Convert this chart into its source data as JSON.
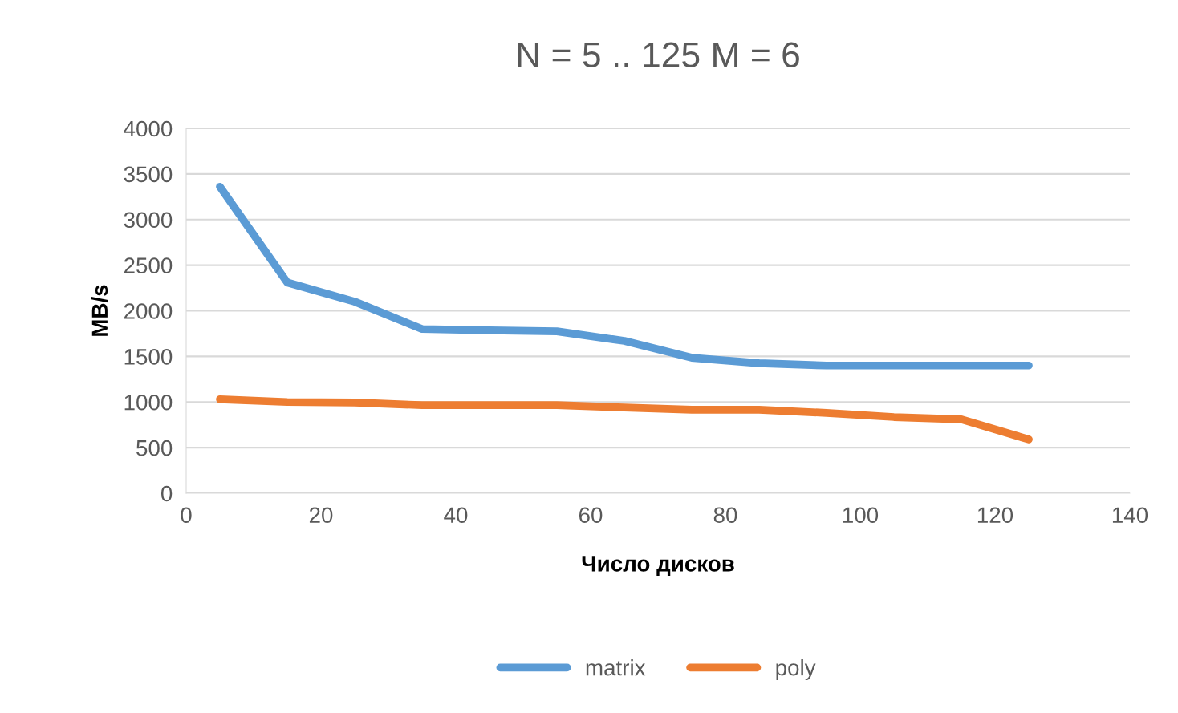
{
  "chart_data": {
    "type": "line",
    "title": "N = 5 .. 125 M = 6",
    "xlabel": "Число дисков",
    "ylabel": "MB/s",
    "x": [
      5,
      15,
      25,
      35,
      45,
      55,
      65,
      75,
      85,
      95,
      105,
      115,
      125
    ],
    "series": [
      {
        "name": "matrix",
        "color": "#5b9bd5",
        "values": [
          3360,
          2310,
          2100,
          1800,
          1785,
          1775,
          1670,
          1485,
          1425,
          1400,
          1400,
          1400,
          1400
        ]
      },
      {
        "name": "poly",
        "color": "#ed7d31",
        "values": [
          1030,
          1000,
          995,
          965,
          965,
          965,
          940,
          915,
          915,
          880,
          835,
          810,
          590
        ]
      }
    ],
    "xlim": [
      0,
      140
    ],
    "xticks": [
      0,
      20,
      40,
      60,
      80,
      100,
      120,
      140
    ],
    "ylim": [
      0,
      4000
    ],
    "yticks": [
      0,
      500,
      1000,
      1500,
      2000,
      2500,
      3000,
      3500,
      4000
    ],
    "grid": "y",
    "legend": "bottom",
    "marker": "none",
    "line_style": "solid"
  }
}
